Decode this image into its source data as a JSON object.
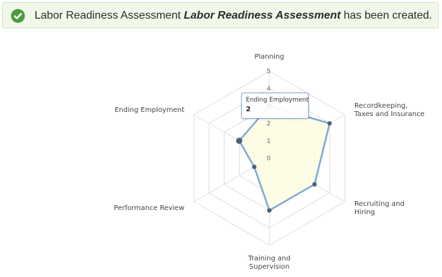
{
  "banner": {
    "prefix": "Labor Readiness Assessment ",
    "name": "Labor Readiness Assessment",
    "suffix": " has been created.",
    "icon": "check-circle-icon",
    "color": "#4b9b3e"
  },
  "chart_data": {
    "type": "radar",
    "categories": [
      "Planning",
      "Recordkeeping, Taxes and Insurance",
      "Recruiting and Hiring",
      "Training and Supervision",
      "Performance Review",
      "Ending Employment"
    ],
    "category_lines": [
      [
        "Planning"
      ],
      [
        "Recordkeeping,",
        "Taxes and Insurance"
      ],
      [
        "Recruiting and",
        "Hiring"
      ],
      [
        "Training and",
        "Supervision"
      ],
      [
        "Performance Review"
      ],
      [
        "Ending Employment"
      ]
    ],
    "values": [
      3,
      4,
      3,
      3,
      1,
      2
    ],
    "ticks": [
      "0",
      "1",
      "2",
      "3",
      "4",
      "5"
    ],
    "ylim": [
      0,
      5
    ],
    "series_color": "#7aaad6",
    "fill_color": "#fdfde0",
    "marker_color": "#4a6278",
    "grid": true
  },
  "tooltip": {
    "title": "Ending Employment",
    "value": "2"
  }
}
